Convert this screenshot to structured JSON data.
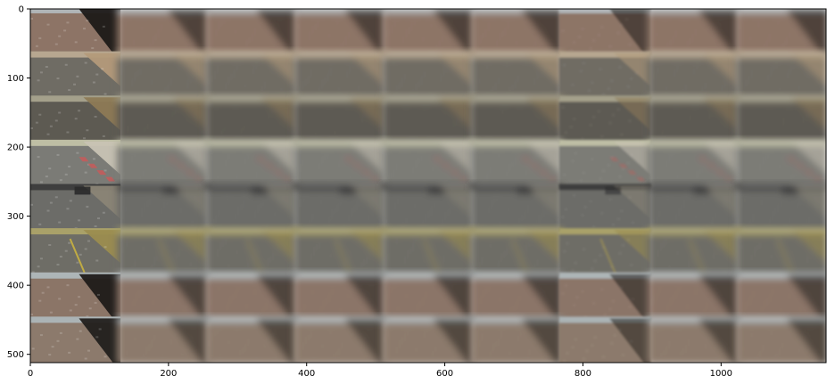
{
  "figure": {
    "x_ticks": [
      "0",
      "200",
      "400",
      "600",
      "800",
      "1000"
    ],
    "y_ticks": [
      "0",
      "100",
      "200",
      "300",
      "400",
      "500"
    ],
    "x_tick_values": [
      0,
      200,
      400,
      600,
      800,
      1000
    ],
    "y_tick_values": [
      0,
      100,
      200,
      300,
      400,
      500
    ],
    "x_range": [
      0,
      1152
    ],
    "y_range": [
      512,
      0
    ]
  },
  "grid": {
    "rows": 8,
    "cols": 9,
    "row_scenes": [
      {
        "scene": "road-edge-left-dark-shadow",
        "road": "#8d7466",
        "side": "#1e1a18",
        "sky": "#b9c6cc"
      },
      {
        "scene": "gravel-road-right-dirt",
        "road": "#6f6c64",
        "side": "#b39a7a",
        "sky": "#c9b79b"
      },
      {
        "scene": "dark-road-sandy-right",
        "road": "#5d5a52",
        "side": "#8d7a55",
        "sky": "#b7b29a"
      },
      {
        "scene": "curb-red-white-right",
        "road": "#7b7b76",
        "side": "#c8c3b4",
        "sky": "#cfcfb0"
      },
      {
        "scene": "road-with-bridge-right",
        "road": "#6c6c68",
        "side": "#8b8576",
        "sky": "#333333"
      },
      {
        "scene": "yellow-lane-grass",
        "road": "#6e6d66",
        "side": "#9b8d4f",
        "sky": "#b8ae6a"
      },
      {
        "scene": "road-edge-left-dark-shadow",
        "road": "#8b7567",
        "side": "#1f1b19",
        "sky": "#b5c5cc"
      },
      {
        "scene": "road-edge-left-dark-shadow",
        "road": "#8c7a6c",
        "side": "#22201e",
        "sky": "#b3c2c8"
      }
    ],
    "columns": [
      {
        "variant": "original"
      },
      {
        "variant": "blurred"
      },
      {
        "variant": "blurred"
      },
      {
        "variant": "blurred"
      },
      {
        "variant": "blurred"
      },
      {
        "variant": "blurred"
      },
      {
        "variant": "sharpened"
      },
      {
        "variant": "blurred"
      },
      {
        "variant": "blurred"
      }
    ]
  }
}
